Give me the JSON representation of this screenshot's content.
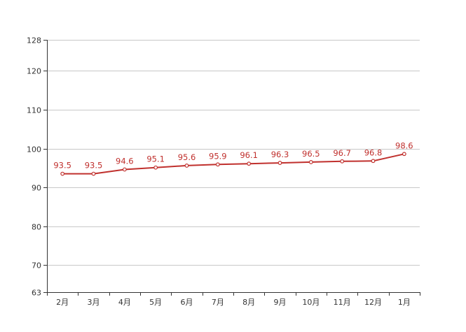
{
  "chart_data": {
    "type": "line",
    "title": "",
    "xlabel": "",
    "ylabel": "",
    "categories": [
      "2月",
      "3月",
      "4月",
      "5月",
      "6月",
      "7月",
      "8月",
      "9月",
      "10月",
      "11月",
      "12月",
      "1月"
    ],
    "series": [
      {
        "values": [
          93.5,
          93.5,
          94.6,
          95.1,
          95.6,
          95.9,
          96.1,
          96.3,
          96.5,
          96.7,
          96.8,
          98.6
        ]
      }
    ],
    "data_labels": [
      "93.5",
      "93.5",
      "94.6",
      "95.1",
      "95.6",
      "95.9",
      "96.1",
      "96.3",
      "96.5",
      "96.7",
      "96.8",
      "98.6"
    ],
    "ylim": [
      63,
      128
    ],
    "yticks": [
      63,
      70,
      80,
      90,
      100,
      110,
      120,
      128
    ],
    "ytick_labels": [
      "63",
      "70",
      "80",
      "90",
      "100",
      "110",
      "120",
      "128"
    ],
    "grid": true,
    "legend": "none",
    "colors": {
      "line": "#c0302d",
      "label": "#c0302d",
      "marker_fill": "#ffffff"
    }
  }
}
